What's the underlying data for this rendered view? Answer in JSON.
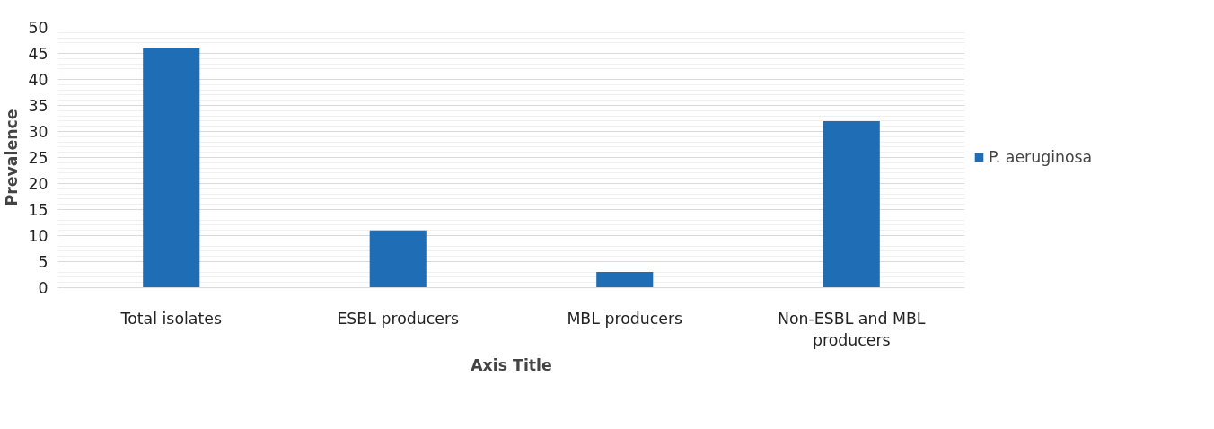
{
  "chart_data": {
    "type": "bar",
    "xlabel": "Axis Title",
    "ylabel": "Prevalence",
    "categories": [
      "Total isolates",
      "ESBL producers",
      "MBL producers",
      "Non-ESBL and MBL producers"
    ],
    "series": [
      {
        "name": "P. aeruginosa",
        "color": "#1f6db5",
        "values": [
          46,
          11,
          3,
          32
        ]
      }
    ],
    "ylim": [
      0,
      50
    ],
    "yticks": [
      0,
      5,
      10,
      15,
      20,
      25,
      30,
      35,
      40,
      45,
      50
    ],
    "grid": "y",
    "legend": "right"
  }
}
